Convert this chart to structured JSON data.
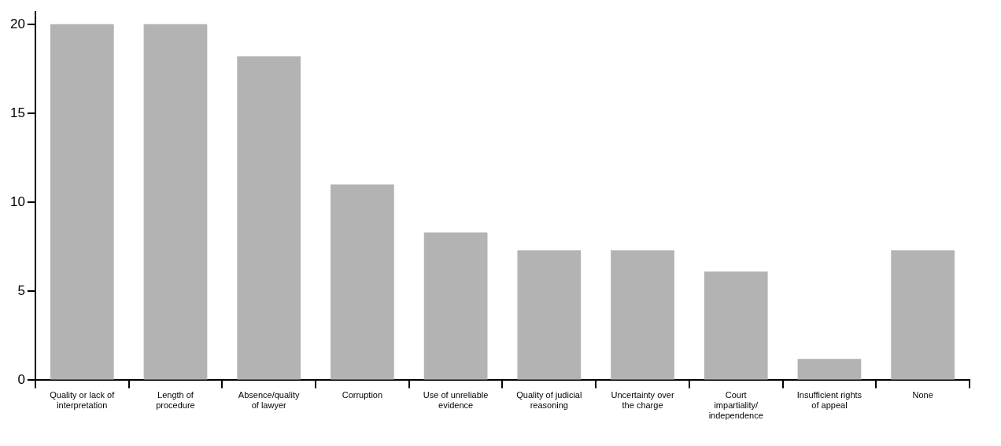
{
  "chart_data": {
    "type": "bar",
    "categories": [
      "Quality or lack of interpretation",
      "Length of procedure",
      "Absence/quality of lawyer",
      "Corruption",
      "Use of unreliable evidence",
      "Quality of judicial reasoning",
      "Uncertainty over the charge",
      "Court impartiality/ independence",
      "Insufficient rights of appeal",
      "None"
    ],
    "values": [
      20,
      20,
      18.2,
      11,
      8.3,
      7.3,
      7.3,
      6.1,
      1.2,
      7.3
    ],
    "color": "#b3b3b3",
    "ylim": [
      0,
      20.7
    ],
    "yticks": [
      0,
      5,
      10,
      15,
      20
    ],
    "grid": false,
    "legend": false
  }
}
